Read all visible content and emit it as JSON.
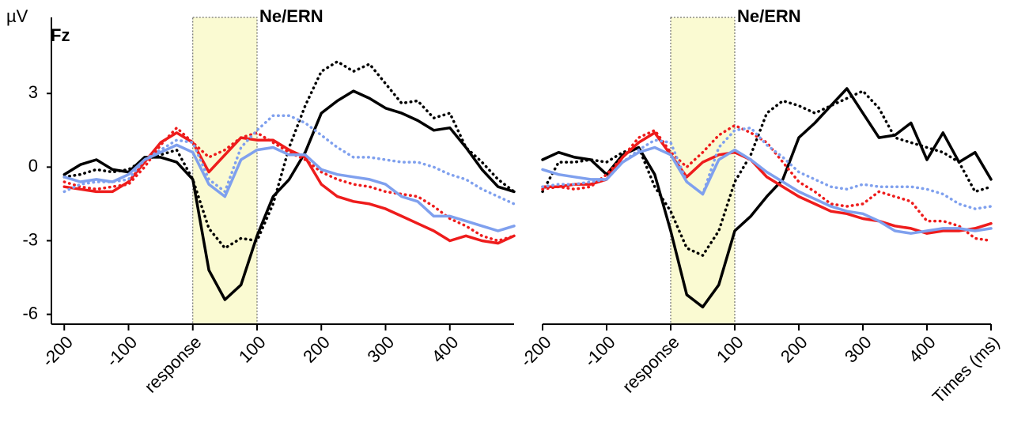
{
  "chart_data": [
    {
      "type": "line",
      "label": "Fz",
      "y_label": "µV",
      "annotation": "Ne/ERN",
      "shaded_region": [
        0,
        100
      ],
      "xlim": [
        -220,
        500
      ],
      "ylim": [
        -6.4,
        6.1
      ],
      "xticks": [
        -200,
        -100,
        {
          "value": 0,
          "label": "response"
        },
        100,
        200,
        300,
        400
      ],
      "yticks": [
        -6,
        -3,
        0,
        3
      ],
      "x": [
        -200,
        -175,
        -150,
        -125,
        -100,
        -75,
        -50,
        -25,
        0,
        25,
        50,
        75,
        100,
        125,
        150,
        175,
        200,
        225,
        250,
        275,
        300,
        325,
        350,
        375,
        400,
        425,
        450,
        475,
        500
      ],
      "series": [
        {
          "color": "#000000",
          "style": "solid",
          "values": [
            -0.3,
            0.1,
            0.3,
            -0.1,
            -0.2,
            0.4,
            0.4,
            0.2,
            -0.5,
            -4.2,
            -5.4,
            -4.8,
            -2.8,
            -1.2,
            -0.5,
            0.6,
            2.2,
            2.7,
            3.1,
            2.8,
            2.4,
            2.2,
            1.9,
            1.5,
            1.6,
            0.8,
            -0.1,
            -0.8,
            -1.0
          ]
        },
        {
          "color": "#000000",
          "style": "dotted",
          "values": [
            -0.4,
            -0.3,
            -0.1,
            -0.2,
            -0.1,
            0.3,
            0.5,
            0.7,
            -0.5,
            -2.5,
            -3.3,
            -2.9,
            -3.0,
            -1.5,
            0.8,
            2.5,
            3.9,
            4.3,
            3.9,
            4.2,
            3.4,
            2.6,
            2.7,
            2.0,
            2.2,
            0.8,
            0.2,
            -0.5,
            -1.0
          ]
        },
        {
          "color": "#ee1c1c",
          "style": "solid",
          "values": [
            -0.8,
            -0.9,
            -1.0,
            -1.0,
            -0.6,
            0.2,
            1.0,
            1.4,
            1.0,
            -0.2,
            0.5,
            1.2,
            1.1,
            1.1,
            0.7,
            0.4,
            -0.7,
            -1.2,
            -1.4,
            -1.5,
            -1.7,
            -2.0,
            -2.3,
            -2.6,
            -3.0,
            -2.8,
            -3.0,
            -3.1,
            -2.8
          ]
        },
        {
          "color": "#ee1c1c",
          "style": "dotted",
          "values": [
            -0.6,
            -0.8,
            -0.9,
            -0.8,
            -0.7,
            0.0,
            0.9,
            1.6,
            1.0,
            0.4,
            0.7,
            1.2,
            1.4,
            1.0,
            0.6,
            0.3,
            -0.2,
            -0.5,
            -0.7,
            -0.8,
            -1.0,
            -1.1,
            -1.2,
            -1.6,
            -2.1,
            -2.4,
            -2.8,
            -3.0,
            -2.8
          ]
        },
        {
          "color": "#7fa0ee",
          "style": "solid",
          "values": [
            -0.4,
            -0.6,
            -0.5,
            -0.6,
            -0.3,
            0.3,
            0.6,
            0.9,
            0.6,
            -0.7,
            -1.2,
            0.3,
            0.7,
            0.8,
            0.5,
            0.5,
            -0.1,
            -0.3,
            -0.4,
            -0.5,
            -0.7,
            -1.2,
            -1.4,
            -2.0,
            -2.0,
            -2.2,
            -2.4,
            -2.6,
            -2.4
          ]
        },
        {
          "color": "#7fa0ee",
          "style": "dotted",
          "values": [
            -1.0,
            -0.7,
            -0.6,
            -0.6,
            -0.5,
            0.3,
            0.7,
            1.1,
            1.0,
            -0.5,
            -1.0,
            0.8,
            1.5,
            2.1,
            2.1,
            1.8,
            1.3,
            0.8,
            0.4,
            0.4,
            0.3,
            0.2,
            0.2,
            0.0,
            -0.3,
            -0.5,
            -0.9,
            -1.2,
            -1.5
          ]
        }
      ]
    },
    {
      "type": "line",
      "annotation": "Ne/ERN",
      "shaded_region": [
        0,
        100
      ],
      "xlim": [
        -200,
        500
      ],
      "ylim": [
        -6.4,
        6.1
      ],
      "xticks": [
        -200,
        -100,
        {
          "value": 0,
          "label": "response"
        },
        100,
        200,
        300,
        400,
        {
          "value": 500,
          "label": "Times (ms)"
        }
      ],
      "x": [
        -200,
        -175,
        -150,
        -125,
        -100,
        -75,
        -50,
        -25,
        0,
        25,
        50,
        75,
        100,
        125,
        150,
        175,
        200,
        225,
        250,
        275,
        300,
        325,
        350,
        375,
        400,
        425,
        450,
        475,
        500
      ],
      "series": [
        {
          "color": "#000000",
          "style": "solid",
          "values": [
            0.3,
            0.6,
            0.4,
            0.3,
            -0.3,
            0.5,
            0.8,
            -0.3,
            -2.6,
            -5.2,
            -5.7,
            -4.8,
            -2.6,
            -2.0,
            -1.2,
            -0.5,
            1.2,
            1.8,
            2.5,
            3.2,
            2.2,
            1.2,
            1.3,
            1.8,
            0.3,
            1.4,
            0.2,
            0.6,
            -0.5
          ]
        },
        {
          "color": "#000000",
          "style": "dotted",
          "values": [
            -1.0,
            0.2,
            0.2,
            0.3,
            0.2,
            0.6,
            0.8,
            -0.8,
            -1.8,
            -3.3,
            -3.6,
            -2.6,
            -0.6,
            0.5,
            2.2,
            2.7,
            2.5,
            2.2,
            2.5,
            2.8,
            3.1,
            2.4,
            1.2,
            1.0,
            0.8,
            0.6,
            0.2,
            -1.0,
            -0.8
          ]
        },
        {
          "color": "#ee1c1c",
          "style": "solid",
          "values": [
            -0.8,
            -0.8,
            -0.7,
            -0.7,
            -0.5,
            0.4,
            1.0,
            1.4,
            0.5,
            -0.4,
            0.2,
            0.5,
            0.6,
            0.3,
            -0.4,
            -0.8,
            -1.2,
            -1.5,
            -1.8,
            -1.9,
            -2.1,
            -2.2,
            -2.4,
            -2.5,
            -2.7,
            -2.6,
            -2.6,
            -2.5,
            -2.3
          ]
        },
        {
          "color": "#ee1c1c",
          "style": "dotted",
          "values": [
            -0.9,
            -0.8,
            -0.9,
            -0.8,
            -0.3,
            0.4,
            1.2,
            1.5,
            0.6,
            0.0,
            0.6,
            1.3,
            1.7,
            1.4,
            1.0,
            0.2,
            -0.6,
            -1.0,
            -1.5,
            -1.6,
            -1.5,
            -1.0,
            -1.2,
            -1.4,
            -2.2,
            -2.2,
            -2.4,
            -2.9,
            -3.0
          ]
        },
        {
          "color": "#7fa0ee",
          "style": "solid",
          "values": [
            -0.1,
            -0.3,
            -0.4,
            -0.5,
            -0.5,
            0.2,
            0.6,
            0.8,
            0.5,
            -0.6,
            -1.1,
            0.3,
            0.7,
            0.3,
            -0.2,
            -0.6,
            -1.0,
            -1.3,
            -1.6,
            -1.8,
            -1.9,
            -2.2,
            -2.6,
            -2.7,
            -2.6,
            -2.5,
            -2.5,
            -2.6,
            -2.5
          ]
        },
        {
          "color": "#7fa0ee",
          "style": "dotted",
          "values": [
            -0.8,
            -0.7,
            -0.7,
            -0.6,
            -0.5,
            0.2,
            0.7,
            1.1,
            1.0,
            -0.6,
            -1.1,
            0.8,
            1.5,
            1.6,
            0.9,
            0.4,
            -0.2,
            -0.5,
            -0.8,
            -0.9,
            -0.7,
            -0.8,
            -0.8,
            -0.8,
            -0.9,
            -1.1,
            -1.5,
            -1.7,
            -1.6
          ]
        }
      ]
    }
  ]
}
